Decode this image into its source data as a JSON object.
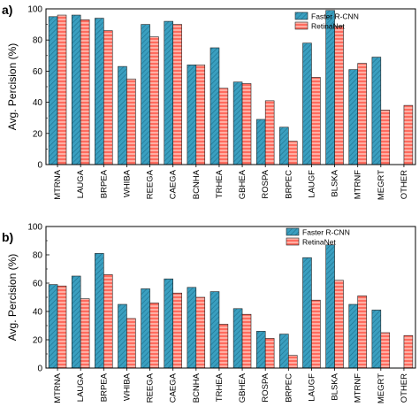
{
  "chart_data": [
    {
      "type": "bar",
      "panel_label": "a)",
      "ylabel": "Avg. Percision (%)",
      "ylim": [
        0,
        100
      ],
      "yticks": [
        0,
        20,
        40,
        60,
        80,
        100
      ],
      "categories": [
        "MTRNA",
        "LAUGA",
        "BRPEA",
        "WHIBA",
        "REEGA",
        "CAEGA",
        "BCNHA",
        "TRHEA",
        "GBHEA",
        "ROSPA",
        "BRPEC",
        "LAUGF",
        "BLSKA",
        "MTRNF",
        "MEGRT",
        "OTHER"
      ],
      "series": [
        {
          "name": "Faster R-CNN",
          "color": "#3a9fc0",
          "pattern": "diagonal",
          "values": [
            95,
            96,
            94,
            63,
            90,
            92,
            64,
            75,
            53,
            29,
            24,
            78,
            99,
            61,
            69,
            0
          ]
        },
        {
          "name": "RetinaNet",
          "color": "#ff6b5e",
          "pattern": "horizontal",
          "values": [
            96,
            93,
            86,
            55,
            82,
            90,
            64,
            49,
            52,
            41,
            15,
            56,
            89,
            65,
            35,
            38
          ]
        }
      ],
      "legend_position": "top-right",
      "grid": false
    },
    {
      "type": "bar",
      "panel_label": "b)",
      "ylabel": "Avg. Percision (%)",
      "ylim": [
        0,
        100
      ],
      "yticks": [
        0,
        20,
        40,
        60,
        80,
        100
      ],
      "categories": [
        "MTRNA",
        "LAUGA",
        "BRPEA",
        "WHIBA",
        "REEGA",
        "CAEGA",
        "BCNHA",
        "TRHEA",
        "GBHEA",
        "ROSPA",
        "BRPEC",
        "LAUGF",
        "BLSKA",
        "MTRNF",
        "MEGRT",
        "OTHER"
      ],
      "series": [
        {
          "name": "Faster R-CNN",
          "color": "#3a9fc0",
          "pattern": "diagonal",
          "values": [
            59,
            65,
            81,
            45,
            56,
            63,
            57,
            54,
            42,
            26,
            24,
            78,
            87,
            45,
            41,
            0
          ]
        },
        {
          "name": "RetinaNet",
          "color": "#ff6b5e",
          "pattern": "horizontal",
          "values": [
            58,
            49,
            66,
            35,
            46,
            53,
            50,
            31,
            38,
            21,
            9,
            48,
            62,
            51,
            25,
            23
          ]
        }
      ],
      "legend_position": "top-right",
      "grid": false
    }
  ]
}
